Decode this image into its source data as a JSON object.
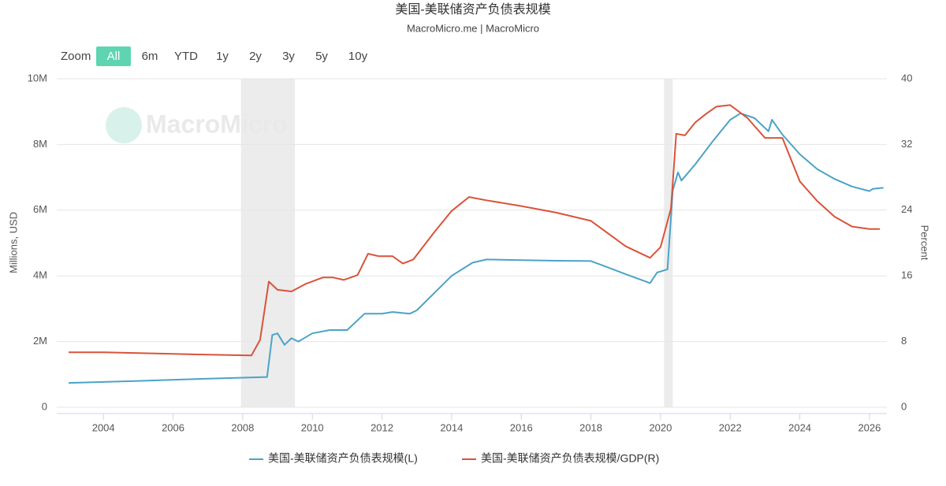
{
  "chart_data": {
    "type": "line",
    "title": "美国-美联储资产负债表规模",
    "subtitle": "MacroMicro.me | MacroMicro",
    "watermark": "MacroMicro",
    "range_selector": {
      "label": "Zoom",
      "buttons": [
        "All",
        "6m",
        "YTD",
        "1y",
        "2y",
        "3y",
        "5y",
        "10y"
      ],
      "selected": "All"
    },
    "y_label": "Millions, USD",
    "y2_label": "Percent",
    "xlim": [
      2002.66,
      2026.5
    ],
    "xticks": [
      2004,
      2006,
      2008,
      2010,
      2012,
      2014,
      2016,
      2018,
      2020,
      2022,
      2024,
      2026
    ],
    "ylim": [
      0,
      10000000
    ],
    "yticks": [
      0,
      {
        "value": 2000000,
        "label": "2M"
      },
      {
        "value": 4000000,
        "label": "4M"
      },
      {
        "value": 6000000,
        "label": "6M"
      },
      {
        "value": 8000000,
        "label": "8M"
      },
      {
        "value": 10000000,
        "label": "10M"
      }
    ],
    "y2lim": [
      0,
      40
    ],
    "y2ticks": [
      0,
      8,
      16,
      24,
      32,
      40
    ],
    "grid": true,
    "legend": "bottom",
    "shaded_ranges": [
      [
        2007.95,
        2009.5
      ],
      [
        2020.1,
        2020.35
      ]
    ],
    "series": [
      {
        "name": "美国-美联储资产负债表规模(L)",
        "color": "#4ba3c7",
        "axis": "y",
        "x": [
          2003.0,
          2005.0,
          2007.0,
          2008.7,
          2008.85,
          2009.0,
          2009.2,
          2009.4,
          2009.6,
          2010.0,
          2010.5,
          2011.0,
          2011.5,
          2012.0,
          2012.3,
          2012.8,
          2013.0,
          2014.0,
          2014.6,
          2015.0,
          2016.0,
          2017.0,
          2018.0,
          2019.0,
          2019.7,
          2019.9,
          2020.2,
          2020.35,
          2020.5,
          2020.6,
          2021.0,
          2021.5,
          2022.0,
          2022.3,
          2022.7,
          2023.1,
          2023.2,
          2023.5,
          2024.0,
          2024.5,
          2025.0,
          2025.5,
          2026.0,
          2026.1,
          2026.4
        ],
        "values": [
          740000,
          800000,
          870000,
          920000,
          2200000,
          2250000,
          1900000,
          2100000,
          2000000,
          2250000,
          2350000,
          2350000,
          2850000,
          2850000,
          2900000,
          2850000,
          2950000,
          4000000,
          4400000,
          4500000,
          4480000,
          4460000,
          4450000,
          4050000,
          3780000,
          4100000,
          4200000,
          6600000,
          7150000,
          6900000,
          7400000,
          8100000,
          8750000,
          8950000,
          8800000,
          8400000,
          8750000,
          8300000,
          7700000,
          7250000,
          6950000,
          6720000,
          6580000,
          6650000,
          6680000
        ]
      },
      {
        "name": "美国-美联储资产负债表规模/GDP(R)",
        "color": "#d9533a",
        "axis": "y2",
        "x": [
          2003.0,
          2004.0,
          2005.0,
          2006.0,
          2007.0,
          2008.25,
          2008.5,
          2008.75,
          2009.0,
          2009.4,
          2009.8,
          2010.3,
          2010.6,
          2010.9,
          2011.3,
          2011.6,
          2011.9,
          2012.3,
          2012.6,
          2012.9,
          2013.5,
          2014.0,
          2014.5,
          2015.0,
          2016.0,
          2017.0,
          2018.0,
          2019.0,
          2019.7,
          2020.0,
          2020.3,
          2020.45,
          2020.7,
          2021.0,
          2021.3,
          2021.6,
          2022.0,
          2022.5,
          2023.0,
          2023.5,
          2024.0,
          2024.5,
          2025.0,
          2025.5,
          2026.0,
          2026.3
        ],
        "values": [
          6.7,
          6.7,
          6.6,
          6.5,
          6.4,
          6.3,
          8.2,
          15.3,
          14.3,
          14.1,
          15.0,
          15.8,
          15.8,
          15.5,
          16.1,
          18.7,
          18.4,
          18.4,
          17.5,
          18.0,
          21.3,
          23.9,
          25.6,
          25.2,
          24.5,
          23.7,
          22.7,
          19.6,
          18.2,
          19.5,
          24.2,
          33.3,
          33.1,
          34.7,
          35.7,
          36.6,
          36.8,
          35.2,
          32.8,
          32.8,
          27.5,
          25.1,
          23.2,
          22.0,
          21.7,
          21.7
        ]
      }
    ]
  }
}
